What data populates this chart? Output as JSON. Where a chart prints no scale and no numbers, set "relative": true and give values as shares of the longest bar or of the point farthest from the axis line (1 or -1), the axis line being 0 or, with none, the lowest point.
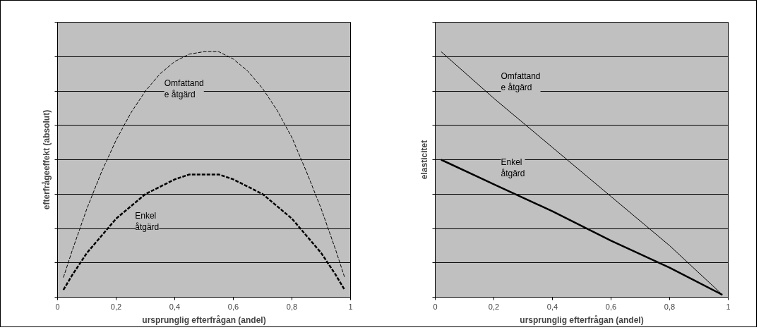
{
  "chart_data": [
    {
      "type": "line",
      "relative": true,
      "xlabel": "ursprunglig efterfrågan (andel)",
      "ylabel": "efterfrågeeffekt (absolut)",
      "xlim": [
        0,
        1
      ],
      "xticks": [
        0,
        {
          "value": 0.2,
          "label": "0,2"
        },
        {
          "value": 0.4,
          "label": "0,4"
        },
        {
          "value": 0.6,
          "label": "0,6"
        },
        {
          "value": 0.8,
          "label": "0,8"
        },
        1
      ],
      "grid": "y",
      "tick_labels": "x",
      "line_style": "dashed",
      "x": [
        0.02,
        0.05,
        0.1,
        0.15,
        0.2,
        0.25,
        0.3,
        0.35,
        0.4,
        0.45,
        0.5,
        0.55,
        0.6,
        0.65,
        0.7,
        0.75,
        0.8,
        0.85,
        0.9,
        0.95,
        0.98
      ],
      "series": [
        {
          "name": "Omfattand\ne åtgärd",
          "color": "#000000",
          "values": [
            0.08,
            0.19,
            0.36,
            0.51,
            0.64,
            0.75,
            0.84,
            0.91,
            0.96,
            0.99,
            1.0,
            1.0,
            0.97,
            0.92,
            0.85,
            0.76,
            0.65,
            0.51,
            0.36,
            0.19,
            0.08
          ]
        },
        {
          "name": "Enkel\nåtgärd",
          "color": "#000000",
          "values": [
            0.03,
            0.09,
            0.18,
            0.25,
            0.32,
            0.37,
            0.42,
            0.45,
            0.48,
            0.5,
            0.5,
            0.5,
            0.48,
            0.45,
            0.42,
            0.37,
            0.32,
            0.25,
            0.18,
            0.09,
            0.03
          ]
        }
      ]
    },
    {
      "type": "line",
      "relative": true,
      "xlabel": "ursprunglig efterfrågan (andel)",
      "ylabel": "elasticitet",
      "xlim": [
        0,
        1
      ],
      "xticks": [
        0,
        {
          "value": 0.2,
          "label": "0,2"
        },
        {
          "value": 0.4,
          "label": "0,4"
        },
        {
          "value": 0.6,
          "label": "0,6"
        },
        {
          "value": 0.8,
          "label": "0,8"
        },
        1
      ],
      "grid": "y",
      "tick_labels": "x",
      "line_style": "solid",
      "x": [
        0.02,
        0.2,
        0.4,
        0.6,
        0.8,
        0.98
      ],
      "series": [
        {
          "name": "Omfattand\ne åtgärd",
          "color": "#000000",
          "values": [
            1.0,
            0.81,
            0.61,
            0.41,
            0.21,
            0.01
          ]
        },
        {
          "name": "Enkel\nåtgärd",
          "color": "#000000",
          "values": [
            0.56,
            0.46,
            0.35,
            0.23,
            0.12,
            0.01
          ]
        }
      ]
    }
  ]
}
